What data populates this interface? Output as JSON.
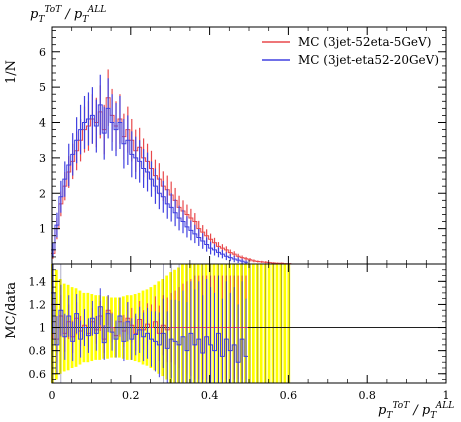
{
  "chart_data": {
    "type": "line",
    "title": "p_T^{ToT} / p_T^{ALL}",
    "title_parts": {
      "main": "p",
      "sub": "T",
      "sup": "ToT",
      "sep": " / p",
      "sub2": "T",
      "sup2": "ALL"
    },
    "xlabel_parts": {
      "main": "p",
      "sub": "T",
      "sup": "ToT",
      "sep": " / p",
      "sub2": "T",
      "sup2": "ALL"
    },
    "ylabel_top": "1/N",
    "ylabel_bottom": "MC/data",
    "xlim": [
      0,
      1
    ],
    "ylim_top": [
      0,
      6.7
    ],
    "ylim_bottom": [
      0.52,
      1.55
    ],
    "x_ticks": [
      "0",
      "0.2",
      "0.4",
      "0.6",
      "0.8",
      "1"
    ],
    "y_ticks_top": [
      "1",
      "2",
      "3",
      "4",
      "5",
      "6"
    ],
    "y_ticks_bottom": [
      "0.6",
      "0.8",
      "1",
      "1.2",
      "1.4"
    ],
    "legend_position": "top-right",
    "series": [
      {
        "name": "MC (3jet-52eta-5GeV)",
        "color": "#e8484b",
        "x": [
          0.0025,
          0.0125,
          0.0225,
          0.0325,
          0.0425,
          0.0525,
          0.0625,
          0.0725,
          0.0825,
          0.0925,
          0.1025,
          0.1125,
          0.1225,
          0.1325,
          0.1425,
          0.1525,
          0.1625,
          0.1725,
          0.1825,
          0.1925,
          0.2025,
          0.2125,
          0.2225,
          0.2325,
          0.2425,
          0.2525,
          0.2625,
          0.2725,
          0.2825,
          0.2925,
          0.3025,
          0.3125,
          0.3225,
          0.3325,
          0.3425,
          0.3525,
          0.3625,
          0.3725,
          0.3825,
          0.3925,
          0.4025,
          0.4125,
          0.4225,
          0.4325,
          0.4425,
          0.4525,
          0.4625,
          0.4725,
          0.4825,
          0.4925,
          0.5025,
          0.5125,
          0.5225,
          0.5325,
          0.5425,
          0.5525,
          0.5625,
          0.5725,
          0.5825,
          0.5925,
          0.6025
        ],
        "y": [
          0.3,
          1.0,
          1.7,
          2.2,
          2.6,
          2.9,
          3.2,
          3.5,
          3.8,
          3.9,
          4.1,
          4.0,
          4.3,
          3.8,
          4.7,
          4.2,
          3.9,
          4.1,
          3.6,
          3.8,
          3.5,
          3.2,
          3.3,
          3.0,
          2.9,
          2.7,
          2.5,
          2.4,
          2.2,
          2.1,
          1.95,
          1.8,
          1.6,
          1.5,
          1.4,
          1.3,
          1.2,
          1.0,
          0.9,
          0.8,
          0.7,
          0.6,
          0.5,
          0.45,
          0.4,
          0.32,
          0.28,
          0.22,
          0.18,
          0.15,
          0.12,
          0.09,
          0.07,
          0.06,
          0.05,
          0.04,
          0.03,
          0.02,
          0.02,
          0.01,
          0.01
        ],
        "err": [
          0.15,
          0.3,
          0.35,
          0.4,
          0.45,
          0.5,
          0.55,
          0.6,
          0.65,
          0.7,
          0.7,
          0.7,
          0.75,
          0.7,
          0.8,
          0.75,
          0.7,
          0.7,
          0.65,
          0.65,
          0.6,
          0.6,
          0.55,
          0.55,
          0.5,
          0.5,
          0.45,
          0.45,
          0.42,
          0.4,
          0.38,
          0.35,
          0.33,
          0.3,
          0.28,
          0.26,
          0.24,
          0.22,
          0.2,
          0.18,
          0.16,
          0.14,
          0.12,
          0.11,
          0.1,
          0.09,
          0.08,
          0.07,
          0.06,
          0.05,
          0.05,
          0.04,
          0.03,
          0.03,
          0.03,
          0.02,
          0.02,
          0.02,
          0.02,
          0.01,
          0.01
        ]
      },
      {
        "name": "MC (3jet-eta52-20GeV)",
        "color": "#4040e0",
        "x": [
          0.0025,
          0.0125,
          0.0225,
          0.0325,
          0.0425,
          0.0525,
          0.0625,
          0.0725,
          0.0825,
          0.0925,
          0.1025,
          0.1125,
          0.1225,
          0.1325,
          0.1425,
          0.1525,
          0.1625,
          0.1725,
          0.1825,
          0.1925,
          0.2025,
          0.2125,
          0.2225,
          0.2325,
          0.2425,
          0.2525,
          0.2625,
          0.2725,
          0.2825,
          0.2925,
          0.3025,
          0.3125,
          0.3225,
          0.3325,
          0.3425,
          0.3525,
          0.3625,
          0.3725,
          0.3825,
          0.3925,
          0.4025,
          0.4125,
          0.4225,
          0.4325,
          0.4425,
          0.4525,
          0.4625,
          0.4725,
          0.4825,
          0.4925
        ],
        "y": [
          0.4,
          1.1,
          1.9,
          2.4,
          2.8,
          3.1,
          3.5,
          3.8,
          4.0,
          4.1,
          4.2,
          3.9,
          4.5,
          3.7,
          4.4,
          4.0,
          3.8,
          4.0,
          3.4,
          3.5,
          3.1,
          3.0,
          2.9,
          2.7,
          2.6,
          2.4,
          2.2,
          2.0,
          1.9,
          1.7,
          1.6,
          1.45,
          1.3,
          1.2,
          1.05,
          0.95,
          0.85,
          0.75,
          0.65,
          0.55,
          0.45,
          0.4,
          0.33,
          0.28,
          0.22,
          0.18,
          0.14,
          0.11,
          0.08,
          0.05
        ],
        "err": [
          0.2,
          0.35,
          0.45,
          0.5,
          0.6,
          0.6,
          0.65,
          0.7,
          0.75,
          0.75,
          0.8,
          0.75,
          0.85,
          0.75,
          0.85,
          0.8,
          0.75,
          0.75,
          0.7,
          0.7,
          0.65,
          0.6,
          0.6,
          0.55,
          0.55,
          0.5,
          0.5,
          0.45,
          0.45,
          0.42,
          0.4,
          0.38,
          0.35,
          0.33,
          0.3,
          0.28,
          0.26,
          0.24,
          0.22,
          0.2,
          0.18,
          0.16,
          0.14,
          0.12,
          0.11,
          0.1,
          0.09,
          0.08,
          0.07,
          0.05
        ]
      }
    ],
    "ratio": {
      "band_color": "#ffff00",
      "band_x": [
        0.0025,
        0.0125,
        0.0225,
        0.0325,
        0.0425,
        0.0525,
        0.0625,
        0.0725,
        0.0825,
        0.0925,
        0.1025,
        0.1125,
        0.1225,
        0.1325,
        0.1425,
        0.1525,
        0.1625,
        0.1725,
        0.1825,
        0.1925,
        0.2025,
        0.2125,
        0.2225,
        0.2325,
        0.2425,
        0.2525,
        0.2625,
        0.2725,
        0.2825,
        0.2925,
        0.3025,
        0.3125,
        0.3225,
        0.3325,
        0.3425,
        0.3525,
        0.3625,
        0.3725,
        0.3825,
        0.3925,
        0.4025,
        0.4125,
        0.4225,
        0.4325,
        0.4425,
        0.4525,
        0.4625,
        0.4725,
        0.4825,
        0.4925,
        0.5025,
        0.5125,
        0.5225,
        0.5325,
        0.5425,
        0.5525,
        0.5625,
        0.5725,
        0.5825,
        0.5925,
        0.6025
      ],
      "band_low": [
        0.52,
        0.55,
        0.6,
        0.62,
        0.63,
        0.65,
        0.66,
        0.68,
        0.7,
        0.7,
        0.71,
        0.72,
        0.72,
        0.73,
        0.73,
        0.74,
        0.74,
        0.74,
        0.73,
        0.72,
        0.72,
        0.71,
        0.7,
        0.68,
        0.67,
        0.65,
        0.63,
        0.6,
        0.58,
        0.55,
        0.52,
        0.52,
        0.52,
        0.52,
        0.52,
        0.52,
        0.52,
        0.52,
        0.52,
        0.52,
        0.52,
        0.52,
        0.52,
        0.52,
        0.52,
        0.52,
        0.52,
        0.52,
        0.52,
        0.52,
        0.52,
        0.52,
        0.52,
        0.52,
        0.52,
        0.52,
        0.52,
        0.52,
        0.52,
        0.52,
        0.52
      ],
      "band_high": [
        1.55,
        1.5,
        1.42,
        1.38,
        1.37,
        1.35,
        1.34,
        1.32,
        1.3,
        1.3,
        1.29,
        1.28,
        1.28,
        1.27,
        1.27,
        1.26,
        1.26,
        1.26,
        1.27,
        1.28,
        1.28,
        1.29,
        1.3,
        1.32,
        1.33,
        1.35,
        1.37,
        1.4,
        1.42,
        1.45,
        1.48,
        1.5,
        1.52,
        1.55,
        1.55,
        1.55,
        1.55,
        1.55,
        1.55,
        1.55,
        1.55,
        1.55,
        1.55,
        1.55,
        1.55,
        1.55,
        1.55,
        1.55,
        1.55,
        1.55,
        1.55,
        1.55,
        1.55,
        1.55,
        1.55,
        1.55,
        1.55,
        1.55,
        1.55,
        1.55,
        1.55
      ],
      "series": [
        {
          "name": "MC (3jet-52eta-5GeV)",
          "color": "#e8484b",
          "y": [
            1.2,
            0.9,
            1.1,
            0.95,
            1.05,
            0.92,
            1.08,
            0.97,
            1.02,
            0.95,
            1.05,
            0.98,
            1.1,
            0.9,
            1.15,
            1.0,
            0.93,
            1.05,
            0.97,
            1.08,
            1.02,
            0.95,
            1.07,
            0.98,
            1.03,
            1.0,
            1.05,
            0.95,
            1.02,
            0.98,
            1.0,
            1.0,
            1.0,
            1.0,
            1.0,
            1.0,
            1.0,
            1.0,
            1.0,
            1.0,
            1.0,
            1.0,
            1.0,
            1.0,
            1.0,
            1.0,
            1.0,
            1.0,
            1.0,
            1.0
          ],
          "err": [
            0.3,
            0.2,
            0.18,
            0.16,
            0.15,
            0.14,
            0.14,
            0.13,
            0.13,
            0.12,
            0.12,
            0.12,
            0.13,
            0.12,
            0.13,
            0.13,
            0.13,
            0.13,
            0.14,
            0.14,
            0.15,
            0.15,
            0.16,
            0.17,
            0.18,
            0.2,
            0.22,
            0.24,
            0.26,
            0.28,
            0.3,
            0.32,
            0.35,
            0.38,
            0.4,
            0.42,
            0.45,
            0.45,
            0.45,
            0.45,
            0.45,
            0.45,
            0.45,
            0.45,
            0.45,
            0.45,
            0.45,
            0.45,
            0.45,
            0.45
          ]
        },
        {
          "name": "MC (3jet-eta52-20GeV)",
          "color": "#4040e0",
          "y": [
            1.3,
            0.85,
            1.15,
            0.92,
            1.1,
            0.88,
            1.12,
            0.9,
            1.0,
            0.93,
            1.08,
            0.95,
            1.18,
            0.87,
            1.12,
            0.96,
            0.9,
            1.1,
            0.88,
            1.05,
            0.9,
            0.94,
            0.98,
            0.92,
            0.95,
            0.9,
            0.88,
            0.85,
            0.95,
            0.82,
            0.9,
            0.88,
            0.85,
            0.92,
            0.8,
            0.95,
            0.85,
            0.9,
            0.78,
            0.92,
            0.85,
            0.8,
            0.95,
            0.75,
            0.9,
            0.8,
            0.85,
            0.7,
            0.9,
            0.75
          ],
          "err": [
            0.35,
            0.25,
            0.22,
            0.2,
            0.18,
            0.17,
            0.17,
            0.16,
            0.16,
            0.15,
            0.15,
            0.15,
            0.16,
            0.15,
            0.16,
            0.16,
            0.16,
            0.16,
            0.17,
            0.17,
            0.18,
            0.18,
            0.2,
            0.21,
            0.22,
            0.24,
            0.26,
            0.28,
            0.3,
            0.32,
            0.34,
            0.36,
            0.38,
            0.4,
            0.42,
            0.45,
            0.48,
            0.5,
            0.5,
            0.5,
            0.5,
            0.5,
            0.5,
            0.5,
            0.5,
            0.5,
            0.5,
            0.5,
            0.5,
            0.5
          ]
        }
      ]
    }
  }
}
